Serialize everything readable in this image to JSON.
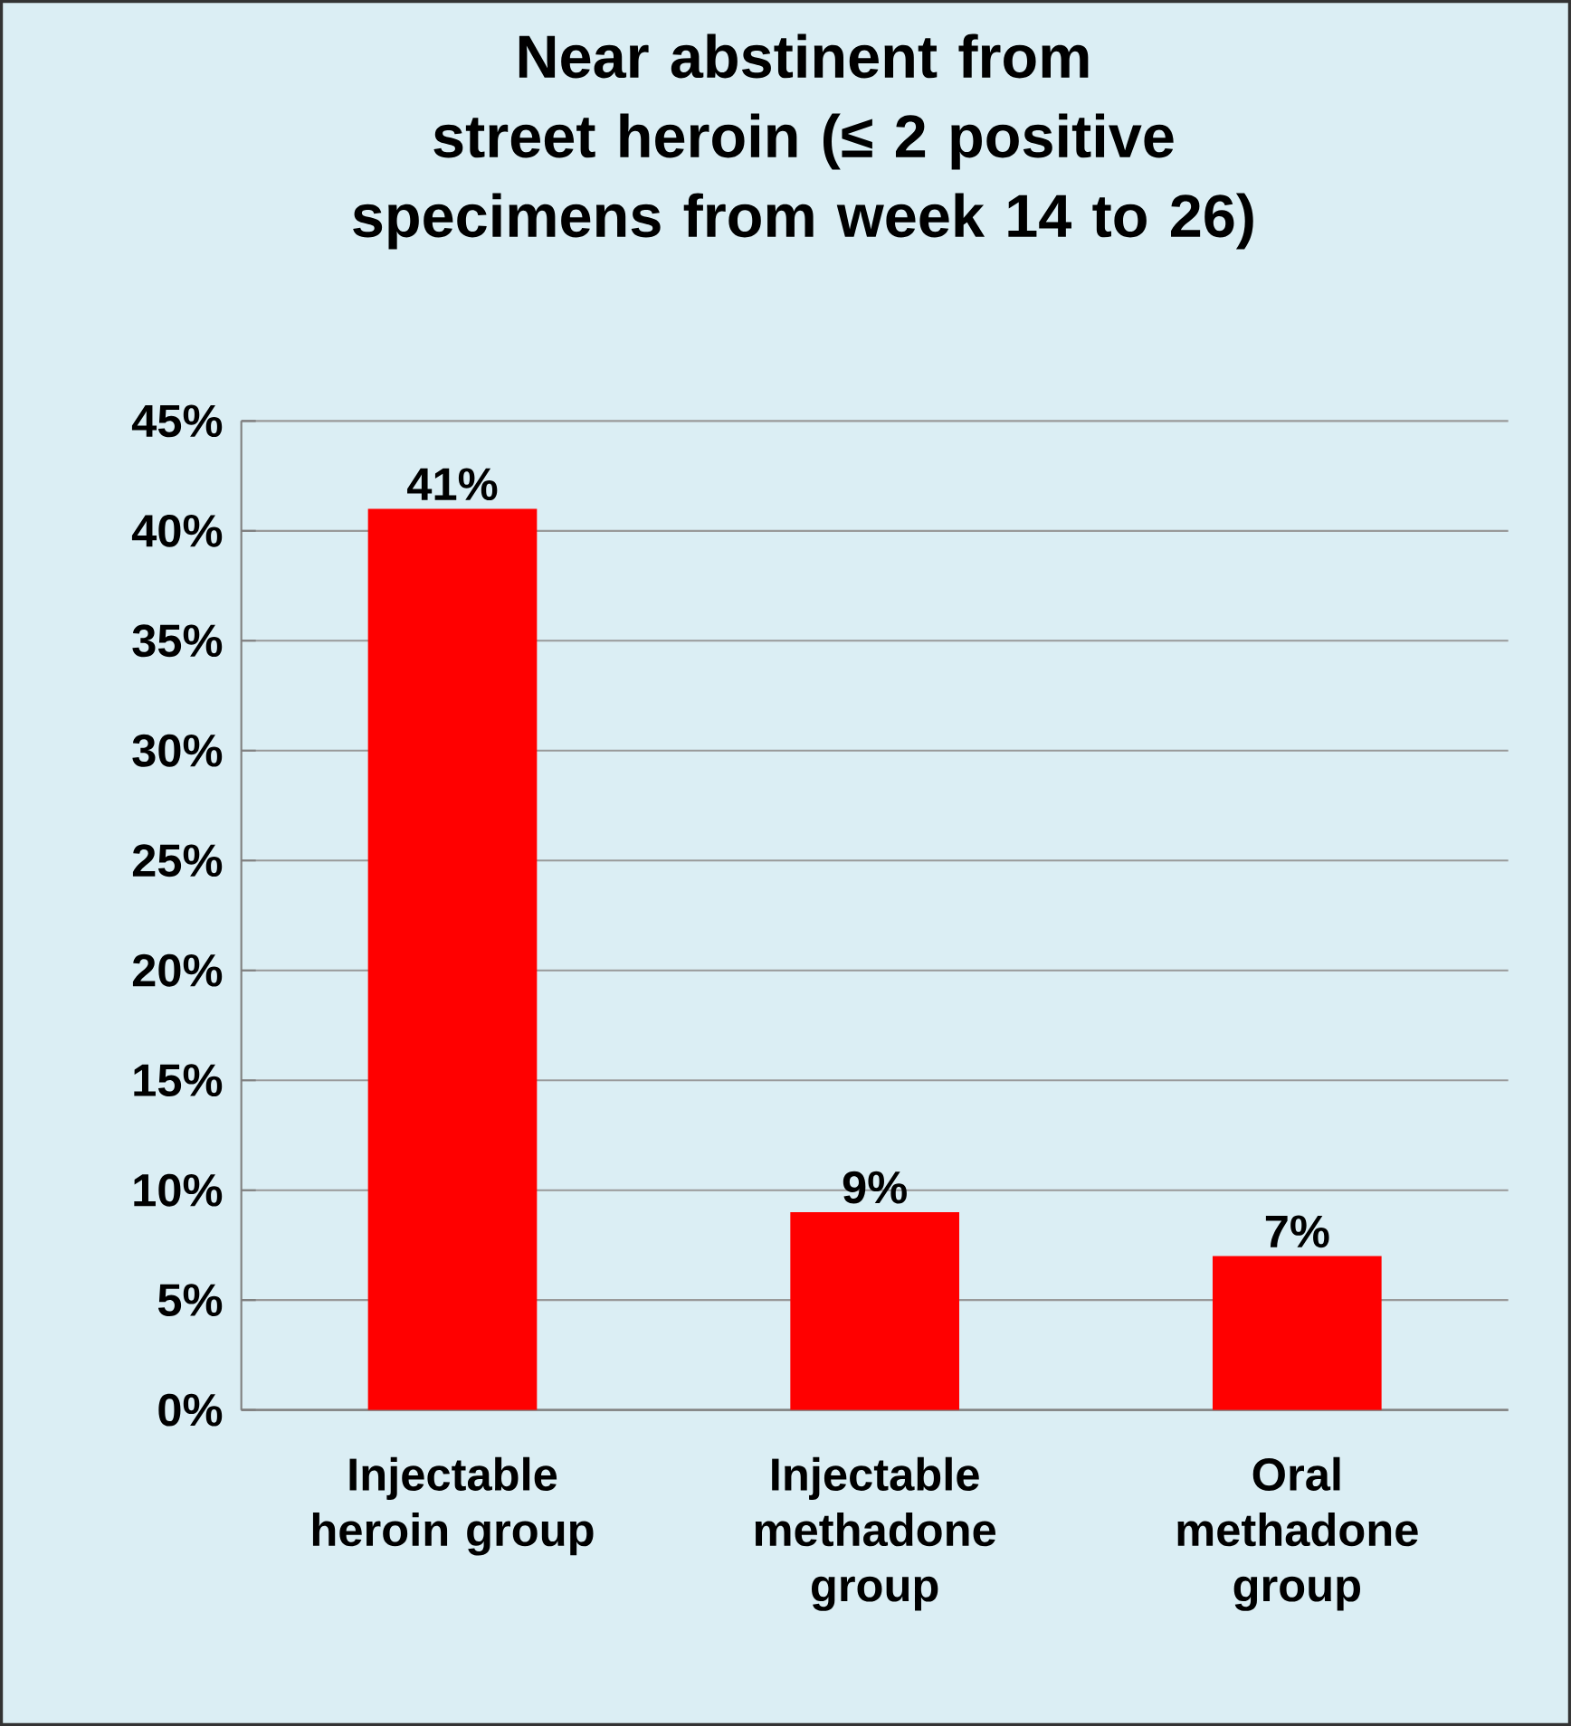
{
  "chart_data": {
    "type": "bar",
    "title": "Near abstinent from street heroin (≤ 2 positive specimens from week 14 to 26)",
    "categories": [
      "Injectable heroin group",
      "Injectable methadone group",
      "Oral methadone group"
    ],
    "values": [
      41,
      9,
      7
    ],
    "value_labels": [
      "41%",
      "9%",
      "7%"
    ],
    "color": "#ff0000",
    "ylim": [
      0,
      45
    ],
    "yticks": [
      {
        "value": 0,
        "label": "0%"
      },
      {
        "value": 5,
        "label": "5%"
      },
      {
        "value": 10,
        "label": "10%"
      },
      {
        "value": 15,
        "label": "15%"
      },
      {
        "value": 20,
        "label": "20%"
      },
      {
        "value": 25,
        "label": "25%"
      },
      {
        "value": 30,
        "label": "30%"
      },
      {
        "value": 35,
        "label": "35%"
      },
      {
        "value": 40,
        "label": "40%"
      },
      {
        "value": 45,
        "label": "45%"
      }
    ],
    "grid": "y"
  }
}
